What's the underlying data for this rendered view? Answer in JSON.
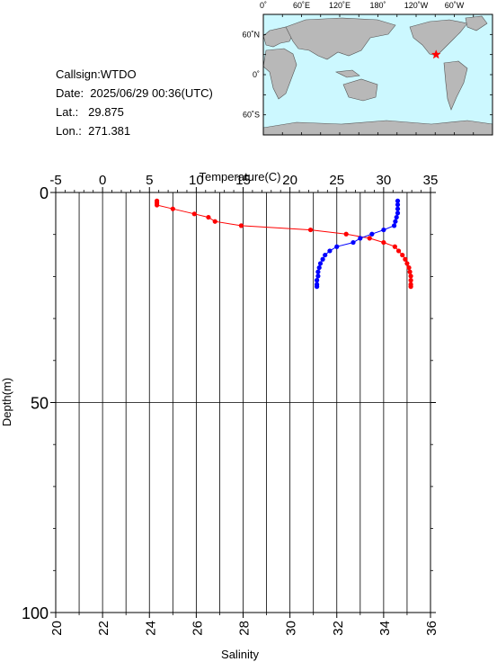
{
  "info": {
    "callsign": "Callsign:WTDO",
    "date": "Date:  2025/06/29 00:36(UTC)",
    "lat": "Lat.:   29.875",
    "lon": "Lon.:  271.381"
  },
  "map": {
    "lon_labels": [
      "0˚",
      "60˚E",
      "120˚E",
      "180˚",
      "120˚W",
      "60˚W"
    ],
    "lat_labels": [
      "60˚N",
      "0˚",
      "60˚S"
    ],
    "ocean_color": "#ccf8ff",
    "land_color": "#b8b8b8",
    "marker_color": "#ff0000",
    "marker_lon": 271.381,
    "marker_lat": 29.875
  },
  "chart_data": {
    "type": "line",
    "title": "",
    "top_axis": {
      "label": "Temperature(C)",
      "ticks": [
        -5,
        0,
        5,
        10,
        15,
        20,
        25,
        30,
        35
      ],
      "range": [
        -5,
        35
      ]
    },
    "bottom_axis": {
      "label": "Salinity",
      "ticks": [
        20,
        22,
        24,
        26,
        28,
        30,
        32,
        34,
        36
      ],
      "range": [
        20,
        36
      ]
    },
    "y_axis": {
      "label": "Depth(m)",
      "ticks": [
        0,
        50,
        100
      ],
      "range": [
        0,
        100
      ],
      "inverted": true
    },
    "grid": true,
    "series": [
      {
        "axis": "temperature",
        "color": "#ff0000",
        "points": [
          [
            5.8,
            2.0
          ],
          [
            5.8,
            2.5
          ],
          [
            5.8,
            3.0
          ],
          [
            7.5,
            3.9
          ],
          [
            9.8,
            5.1
          ],
          [
            11.3,
            5.9
          ],
          [
            12.0,
            6.9
          ],
          [
            14.8,
            7.9
          ],
          [
            22.2,
            8.9
          ],
          [
            26.0,
            9.9
          ],
          [
            28.5,
            10.9
          ],
          [
            30.0,
            11.9
          ],
          [
            31.2,
            12.9
          ],
          [
            31.6,
            13.9
          ],
          [
            32.0,
            14.9
          ],
          [
            32.3,
            15.9
          ],
          [
            32.5,
            16.9
          ],
          [
            32.7,
            17.9
          ],
          [
            32.8,
            18.9
          ],
          [
            32.9,
            19.9
          ],
          [
            32.9,
            20.9
          ],
          [
            32.9,
            21.9
          ],
          [
            32.9,
            22.4
          ]
        ]
      },
      {
        "axis": "salinity",
        "color": "#0000ff",
        "points": [
          [
            34.6,
            2.0
          ],
          [
            34.6,
            2.9
          ],
          [
            34.6,
            3.9
          ],
          [
            34.6,
            4.9
          ],
          [
            34.55,
            5.9
          ],
          [
            34.5,
            6.9
          ],
          [
            34.45,
            7.9
          ],
          [
            34.0,
            8.9
          ],
          [
            33.5,
            9.9
          ],
          [
            33.0,
            10.9
          ],
          [
            32.7,
            11.9
          ],
          [
            32.0,
            12.9
          ],
          [
            31.7,
            13.9
          ],
          [
            31.5,
            14.9
          ],
          [
            31.4,
            15.9
          ],
          [
            31.3,
            16.9
          ],
          [
            31.25,
            17.9
          ],
          [
            31.2,
            18.9
          ],
          [
            31.2,
            19.9
          ],
          [
            31.15,
            20.9
          ],
          [
            31.15,
            21.9
          ],
          [
            31.15,
            22.4
          ]
        ]
      }
    ]
  }
}
